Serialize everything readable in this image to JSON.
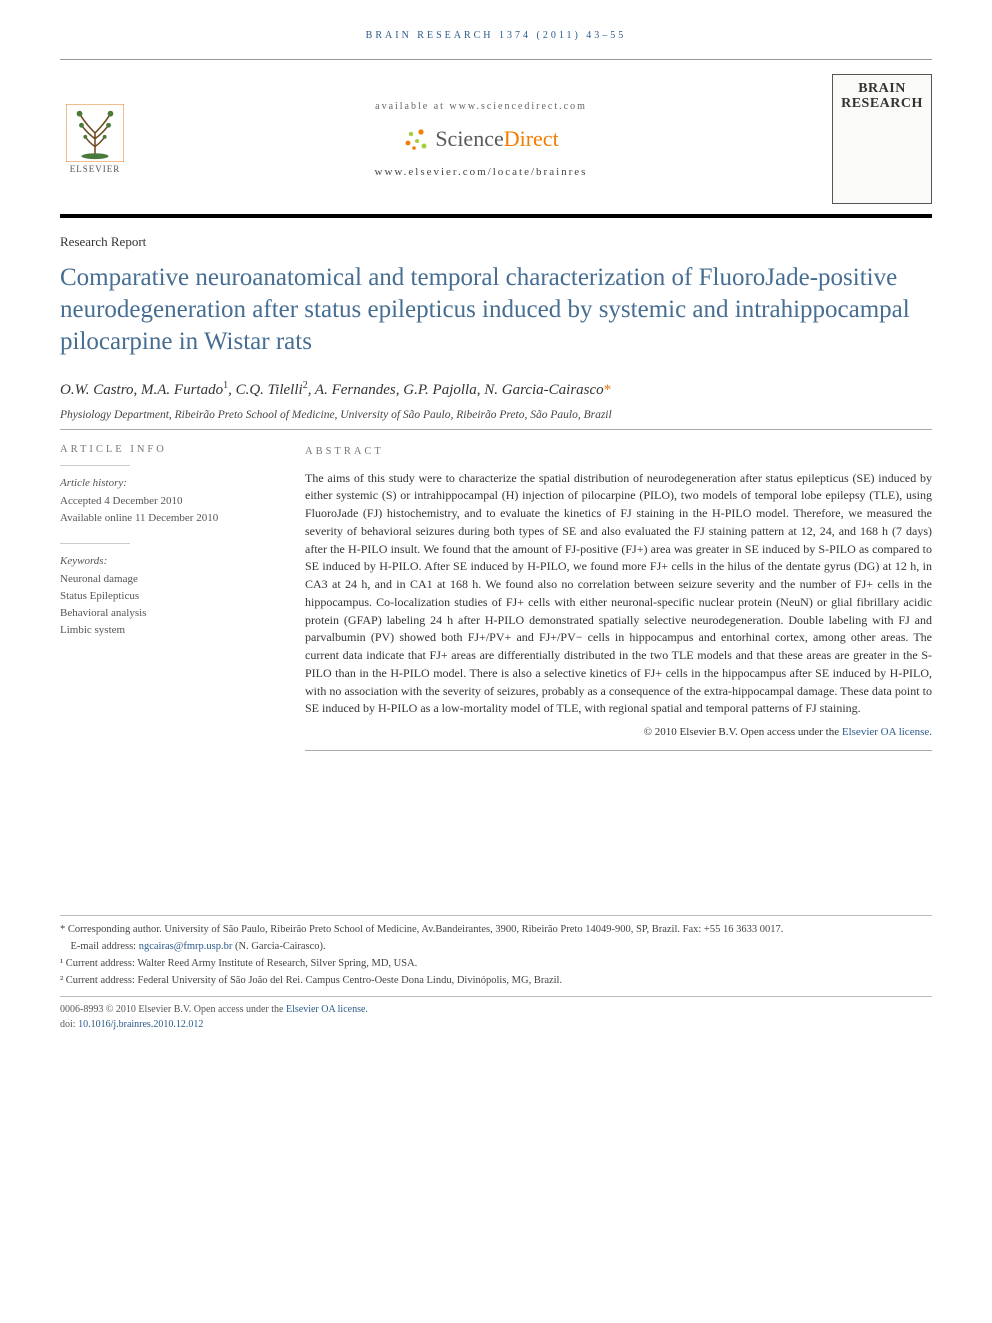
{
  "runningHead": "BRAIN RESEARCH 1374 (2011) 43–55",
  "header": {
    "elsevierWord": "ELSEVIER",
    "availableLine": "available at www.sciencedirect.com",
    "sdTextLeft": "Science",
    "sdTextRight": "Direct",
    "locateLine": "www.elsevier.com/locate/brainres",
    "coverLine1": "BRAIN",
    "coverLine2": "RESEARCH"
  },
  "articleType": "Research Report",
  "title": "Comparative neuroanatomical and temporal characterization of FluoroJade-positive neurodegeneration after status epilepticus induced by systemic and intrahippocampal pilocarpine in Wistar rats",
  "authors": [
    {
      "name": "O.W. Castro",
      "sup": ""
    },
    {
      "name": "M.A. Furtado",
      "sup": "1"
    },
    {
      "name": "C.Q. Tilelli",
      "sup": "2"
    },
    {
      "name": "A. Fernandes",
      "sup": ""
    },
    {
      "name": "G.P. Pajolla",
      "sup": ""
    },
    {
      "name": "N. Garcia-Cairasco",
      "sup": "*"
    }
  ],
  "affiliation": "Physiology Department, Ribeirão Preto School of Medicine, University of São Paulo, Ribeirão Preto, São Paulo, Brazil",
  "sidebar": {
    "infoLabel": "ARTICLE INFO",
    "historyLabel": "Article history:",
    "accepted": "Accepted 4 December 2010",
    "online": "Available online 11 December 2010",
    "keywordsLabel": "Keywords:",
    "keywords": [
      "Neuronal damage",
      "Status Epilepticus",
      "Behavioral analysis",
      "Limbic system"
    ]
  },
  "abstract": {
    "label": "ABSTRACT",
    "text": "The aims of this study were to characterize the spatial distribution of neurodegeneration after status epilepticus (SE) induced by either systemic (S) or intrahippocampal (H) injection of pilocarpine (PILO), two models of temporal lobe epilepsy (TLE), using FluoroJade (FJ) histochemistry, and to evaluate the kinetics of FJ staining in the H-PILO model. Therefore, we measured the severity of behavioral seizures during both types of SE and also evaluated the FJ staining pattern at 12, 24, and 168 h (7 days) after the H-PILO insult. We found that the amount of FJ-positive (FJ+) area was greater in SE induced by S-PILO as compared to SE induced by H-PILO. After SE induced by H-PILO, we found more FJ+ cells in the hilus of the dentate gyrus (DG) at 12 h, in CA3 at 24 h, and in CA1 at 168 h. We found also no correlation between seizure severity and the number of FJ+ cells in the hippocampus. Co-localization studies of FJ+ cells with either neuronal-specific nuclear protein (NeuN) or glial fibrillary acidic protein (GFAP) labeling 24 h after H-PILO demonstrated spatially selective neurodegeneration. Double labeling with FJ and parvalbumin (PV) showed both FJ+/PV+ and FJ+/PV− cells in hippocampus and entorhinal cortex, among other areas. The current data indicate that FJ+ areas are differentially distributed in the two TLE models and that these areas are greater in the S-PILO than in the H-PILO model. There is also a selective kinetics of FJ+ cells in the hippocampus after SE induced by H-PILO, with no association with the severity of seizures, probably as a consequence of the extra-hippocampal damage. These data point to SE induced by H-PILO as a low-mortality model of TLE, with regional spatial and temporal patterns of FJ staining.",
    "copyrightLine": "© 2010 Elsevier B.V. ",
    "copyrightOpen": "Open access under the ",
    "copyrightLink": "Elsevier OA license."
  },
  "footnotes": {
    "corr": "* Corresponding author. University of São Paulo, Ribeirão Preto School of Medicine, Av.Bandeirantes, 3900, Ribeirão Preto 14049-900, SP, Brazil. Fax: +55 16 3633 0017.",
    "emailLabel": "E-mail address: ",
    "email": "ngcairas@fmrp.usp.br",
    "emailTail": " (N. Garcia-Cairasco).",
    "fn1": "¹ Current address: Walter Reed Army Institute of Research, Silver Spring, MD, USA.",
    "fn2": "² Current address: Federal University of São João del Rei. Campus Centro-Oeste Dona Lindu, Divinópolis, MG, Brazil.",
    "issnLine": "0006-8993 © 2010 Elsevier B.V. ",
    "issnOpen": "Open access under the ",
    "issnLink": "Elsevier OA license.",
    "doiLabel": "doi:",
    "doi": "10.1016/j.brainres.2010.12.012"
  },
  "colors": {
    "titleColor": "#466d92",
    "linkColor": "#2a5a8a",
    "accentOrange": "#f57c00",
    "ruleDark": "#000000",
    "ruleLight": "#aaaaaa"
  }
}
